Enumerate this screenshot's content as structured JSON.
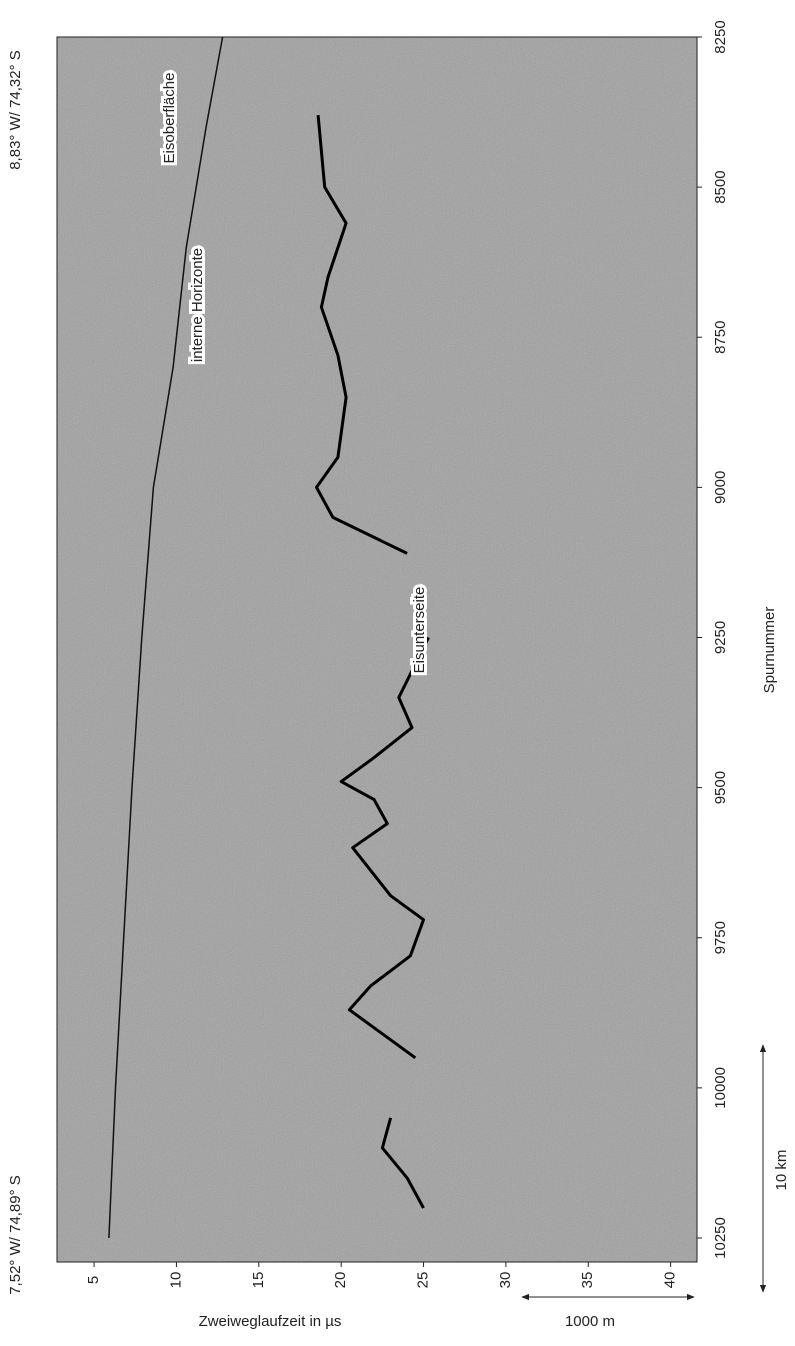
{
  "chart_data": {
    "type": "line",
    "xlabel": "Zweiweglaufzeit in µs",
    "ylabel": "Spurnummer",
    "xlim": [
      2.75,
      41.6
    ],
    "xticks": [
      5,
      10,
      15,
      20,
      25,
      30,
      35,
      40
    ],
    "ylim": [
      8250,
      10290
    ],
    "yticks": [
      8250,
      8500,
      8750,
      9000,
      9250,
      9500,
      9750,
      10000,
      10250
    ],
    "corner_labels": [
      "8,83° W/ 74,32° S",
      "7,52° W/ 74,89° S"
    ],
    "annotations": [
      "Eisoberfläche",
      "interne Horizonte",
      "Eisunterseite"
    ],
    "scale_bars": [
      "1000 m",
      "10 km"
    ],
    "series": [
      {
        "color": "#111",
        "traces": [
          8250,
          8400,
          8600,
          8800,
          9000,
          9250,
          9500,
          9750,
          10000,
          10250
        ],
        "times": [
          12.8,
          11.8,
          10.6,
          9.8,
          8.6,
          7.9,
          7.3,
          6.8,
          6.3,
          5.9
        ]
      },
      {
        "color": "#000",
        "traces": [
          8380,
          8500,
          8560,
          8650,
          8700,
          8780,
          8850,
          8950,
          9000,
          9050,
          9110,
          9180,
          9250,
          9350,
          9400,
          9450,
          9490,
          9520,
          9560,
          9600,
          9680,
          9720,
          9780,
          9830,
          9870,
          9950,
          10000,
          10050,
          10100,
          10150,
          10200
        ],
        "times": [
          18.6,
          19.0,
          20.3,
          19.2,
          18.8,
          19.8,
          20.3,
          19.8,
          18.5,
          19.5,
          24.0,
          null,
          25.3,
          23.5,
          24.3,
          22.0,
          20.0,
          22.0,
          22.8,
          20.7,
          23.0,
          25.0,
          24.2,
          21.8,
          20.5,
          24.5,
          null,
          23.0,
          22.5,
          24.0,
          25.0
        ]
      }
    ]
  }
}
